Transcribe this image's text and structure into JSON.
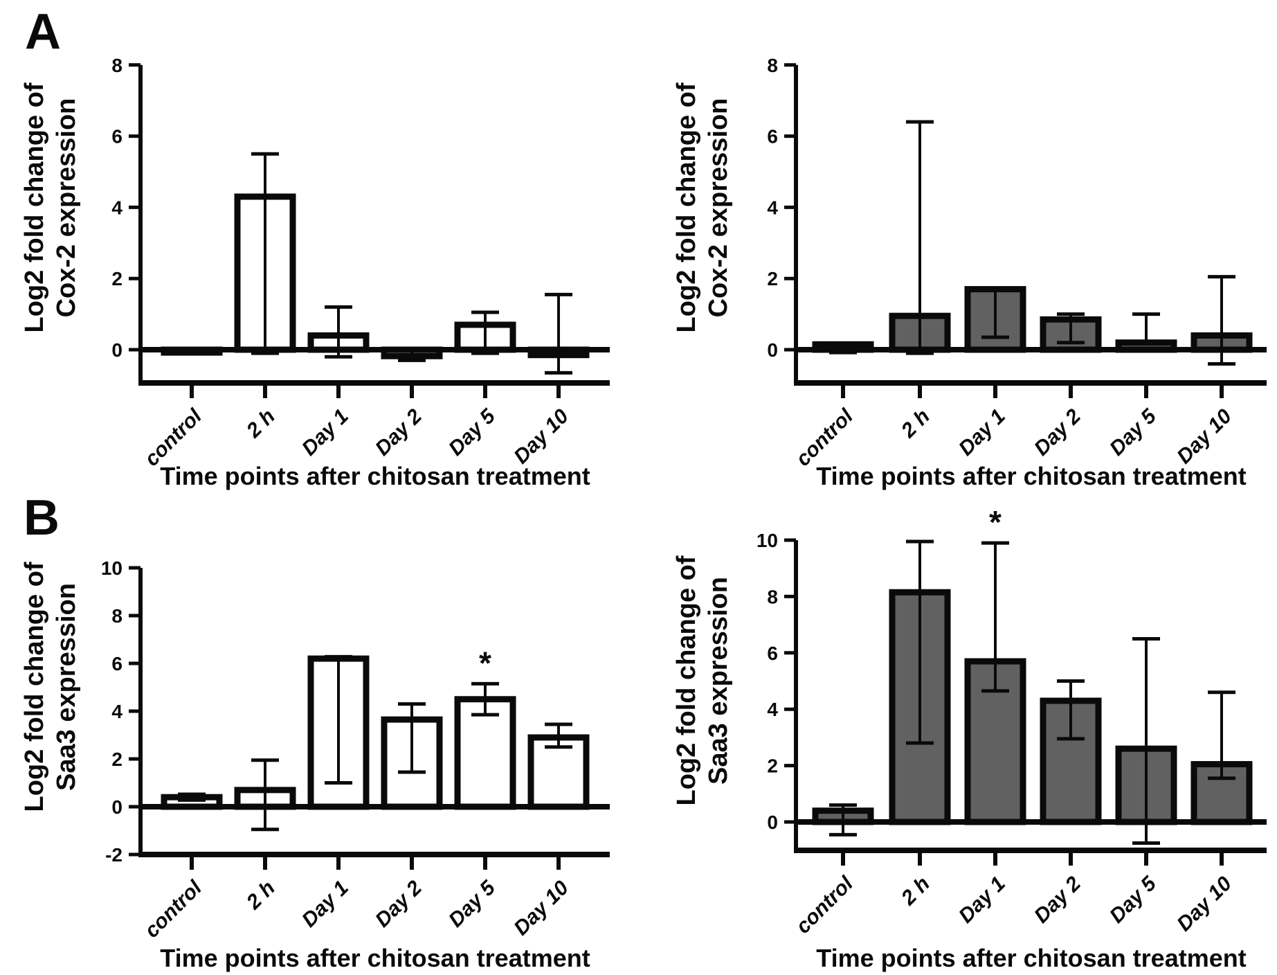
{
  "figure": {
    "panels": [
      {
        "label": "A"
      },
      {
        "label": "B"
      }
    ]
  },
  "colors": {
    "stroke": "#0a0a0a",
    "bar_fill_open": "#ffffff",
    "bar_fill_solid": "#616161",
    "background": "#ffffff"
  },
  "chart_data": [
    {
      "id": "a_left",
      "panel": "A",
      "type": "bar",
      "bar_style": "open",
      "ylabel_lines": [
        "Log2 fold change of",
        "Cox-2 expression"
      ],
      "xlabel": "Time points after chitosan treatment",
      "categories": [
        "control",
        "2 h",
        "Day 1",
        "Day 2",
        "Day 5",
        "Day 10"
      ],
      "values": [
        -0.08,
        4.3,
        0.4,
        -0.18,
        0.7,
        -0.15
      ],
      "err_low": [
        null,
        -0.1,
        -0.2,
        -0.3,
        -0.1,
        -0.65
      ],
      "err_high": [
        null,
        5.5,
        1.2,
        0.0,
        1.05,
        1.55
      ],
      "significance": [
        null,
        null,
        null,
        null,
        null,
        null
      ],
      "ylim": [
        -0.93,
        8
      ],
      "yticks": [
        0,
        2,
        4,
        6,
        8
      ],
      "grid": false,
      "legend": null
    },
    {
      "id": "a_right",
      "panel": "A",
      "type": "bar",
      "bar_style": "solid",
      "ylabel_lines": [
        "Log2 fold change of",
        "Cox-2 expression"
      ],
      "xlabel": "Time points after chitosan treatment",
      "categories": [
        "control",
        "2 h",
        "Day 1",
        "Day 2",
        "Day 5",
        "Day 10"
      ],
      "values": [
        0.15,
        0.95,
        1.7,
        0.85,
        0.2,
        0.4
      ],
      "err_low": [
        -0.08,
        -0.1,
        0.35,
        0.2,
        null,
        -0.4
      ],
      "err_high": [
        null,
        6.4,
        1.72,
        1.0,
        1.0,
        2.05
      ],
      "significance": [
        null,
        null,
        null,
        null,
        null,
        null
      ],
      "ylim": [
        -0.94,
        8
      ],
      "yticks": [
        0,
        2,
        4,
        6,
        8
      ],
      "grid": false,
      "legend": null
    },
    {
      "id": "b_left",
      "panel": "B",
      "type": "bar",
      "bar_style": "open",
      "ylabel_lines": [
        "Log2 fold change of",
        "Saa3 expression"
      ],
      "xlabel": "Time points after chitosan treatment",
      "categories": [
        "control",
        "2 h",
        "Day 1",
        "Day 2",
        "Day 5",
        "Day 10"
      ],
      "values": [
        0.4,
        0.7,
        6.2,
        3.65,
        4.5,
        2.9
      ],
      "err_low": [
        0.28,
        -0.95,
        1.0,
        1.45,
        3.85,
        2.5
      ],
      "err_high": [
        0.52,
        1.95,
        6.28,
        4.3,
        5.15,
        3.45
      ],
      "significance": [
        null,
        null,
        null,
        null,
        "*",
        null
      ],
      "ylim": [
        -2,
        10
      ],
      "yticks": [
        -2,
        0,
        2,
        4,
        6,
        8,
        10
      ],
      "grid": false,
      "legend": null
    },
    {
      "id": "b_right",
      "panel": "B",
      "type": "bar",
      "bar_style": "solid",
      "ylabel_lines": [
        "Log2 fold change of",
        "Saa3 expression"
      ],
      "xlabel": "Time points after chitosan treatment",
      "categories": [
        "control",
        "2 h",
        "Day 1",
        "Day 2",
        "Day 5",
        "Day 10"
      ],
      "values": [
        0.4,
        8.15,
        5.7,
        4.3,
        2.6,
        2.05
      ],
      "err_low": [
        -0.45,
        2.8,
        4.65,
        2.95,
        -0.75,
        1.55
      ],
      "err_high": [
        0.6,
        9.95,
        9.9,
        5.0,
        6.5,
        4.6
      ],
      "significance": [
        null,
        null,
        "*",
        null,
        null,
        null
      ],
      "ylim": [
        -1.0,
        10
      ],
      "yticks": [
        0,
        2,
        4,
        6,
        8,
        10
      ],
      "grid": false,
      "legend": null
    }
  ]
}
